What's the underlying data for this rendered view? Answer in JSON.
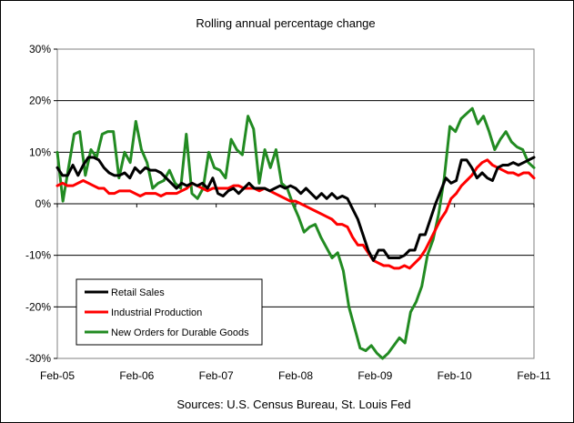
{
  "chart_data": {
    "type": "line",
    "title": "Rolling annual percentage change",
    "source": "Sources: U.S. Census Bureau, St. Louis Fed",
    "ylim": [
      -30,
      30
    ],
    "y_ticks": [
      "30%",
      "20%",
      "10%",
      "0%",
      "-10%",
      "-20%",
      "-30%"
    ],
    "y_tick_values": [
      30,
      20,
      10,
      0,
      -10,
      -20,
      -30
    ],
    "x_ticks": [
      "Feb-05",
      "Feb-06",
      "Feb-07",
      "Feb-08",
      "Feb-09",
      "Feb-10",
      "Feb-11"
    ],
    "x_start": "2005-02",
    "x_end": "2011-02",
    "grid": "horizontal",
    "legend_position": "bottom-left",
    "series": [
      {
        "name": "Retail Sales",
        "color": "#000000",
        "values": [
          7.0,
          5.5,
          5.5,
          7.5,
          5.5,
          7.5,
          9.0,
          9.0,
          8.5,
          7.0,
          6.0,
          5.5,
          5.5,
          6.0,
          5.0,
          7.0,
          6.0,
          7.0,
          6.5,
          6.5,
          6.0,
          5.0,
          4.0,
          3.0,
          4.0,
          3.5,
          4.0,
          3.5,
          4.0,
          3.0,
          5.0,
          2.0,
          1.5,
          2.5,
          3.0,
          2.0,
          3.0,
          4.0,
          3.0,
          3.0,
          3.0,
          2.5,
          3.0,
          3.5,
          3.0,
          3.5,
          3.0,
          2.0,
          3.0,
          2.0,
          1.0,
          2.0,
          1.0,
          2.0,
          1.0,
          1.5,
          1.0,
          -1.0,
          -3.0,
          -6.0,
          -9.0,
          -11.0,
          -9.0,
          -9.0,
          -10.5,
          -10.5,
          -10.5,
          -10.0,
          -9.0,
          -9.0,
          -6.0,
          -6.0,
          -3.0,
          0.0,
          2.5,
          5.0,
          4.0,
          4.5,
          8.5,
          8.5,
          7.0,
          5.0,
          6.0,
          5.0,
          4.5,
          7.0,
          7.5,
          7.5,
          8.0,
          7.5,
          8.0,
          8.5,
          9.0
        ]
      },
      {
        "name": "Industrial Production",
        "color": "#ff0000",
        "values": [
          3.5,
          4.0,
          3.5,
          3.5,
          4.0,
          4.5,
          4.0,
          3.5,
          3.0,
          3.0,
          2.0,
          2.0,
          2.5,
          2.5,
          2.5,
          2.0,
          1.5,
          2.0,
          2.0,
          2.0,
          1.5,
          2.0,
          2.0,
          2.0,
          2.5,
          3.0,
          4.0,
          3.5,
          3.0,
          2.5,
          3.0,
          3.0,
          3.0,
          3.0,
          3.5,
          3.5,
          3.0,
          3.0,
          3.0,
          2.5,
          3.0,
          2.5,
          2.0,
          1.5,
          1.0,
          0.5,
          0.5,
          0.0,
          -0.5,
          -1.0,
          -1.5,
          -2.0,
          -2.5,
          -3.0,
          -4.0,
          -4.0,
          -4.5,
          -6.5,
          -8.0,
          -8.0,
          -9.5,
          -11.0,
          -11.5,
          -12.0,
          -12.0,
          -12.5,
          -12.5,
          -12.0,
          -12.5,
          -11.5,
          -10.5,
          -9.0,
          -7.0,
          -5.0,
          -3.0,
          -1.5,
          1.0,
          2.0,
          3.5,
          4.5,
          5.5,
          7.0,
          8.0,
          8.5,
          7.5,
          7.0,
          6.5,
          6.0,
          6.0,
          5.5,
          6.0,
          6.0,
          5.0
        ]
      },
      {
        "name": "New Orders for Durable Goods",
        "color": "#228b22",
        "values": [
          10.0,
          0.5,
          7.0,
          13.5,
          14.0,
          5.5,
          10.5,
          9.0,
          13.5,
          14.0,
          14.0,
          5.0,
          10.0,
          8.0,
          16.0,
          10.5,
          8.0,
          3.0,
          4.0,
          4.5,
          6.5,
          4.0,
          3.0,
          13.5,
          2.0,
          1.0,
          3.0,
          10.0,
          7.0,
          6.5,
          5.0,
          12.5,
          10.5,
          9.5,
          17.0,
          14.5,
          4.0,
          10.5,
          7.0,
          10.5,
          4.0,
          3.0,
          0.0,
          -2.5,
          -5.5,
          -4.5,
          -4.0,
          -6.5,
          -8.5,
          -10.5,
          -9.5,
          -13.0,
          -20.0,
          -24.0,
          -28.0,
          -28.5,
          -27.5,
          -29.0,
          -30.0,
          -29.0,
          -27.5,
          -26.0,
          -27.0,
          -21.0,
          -19.0,
          -16.0,
          -10.0,
          -7.0,
          -2.0,
          5.0,
          15.0,
          14.0,
          16.5,
          17.5,
          18.5,
          15.5,
          17.0,
          14.0,
          10.5,
          12.5,
          14.0,
          12.0,
          11.0,
          10.5,
          8.0,
          7.0
        ]
      }
    ]
  }
}
